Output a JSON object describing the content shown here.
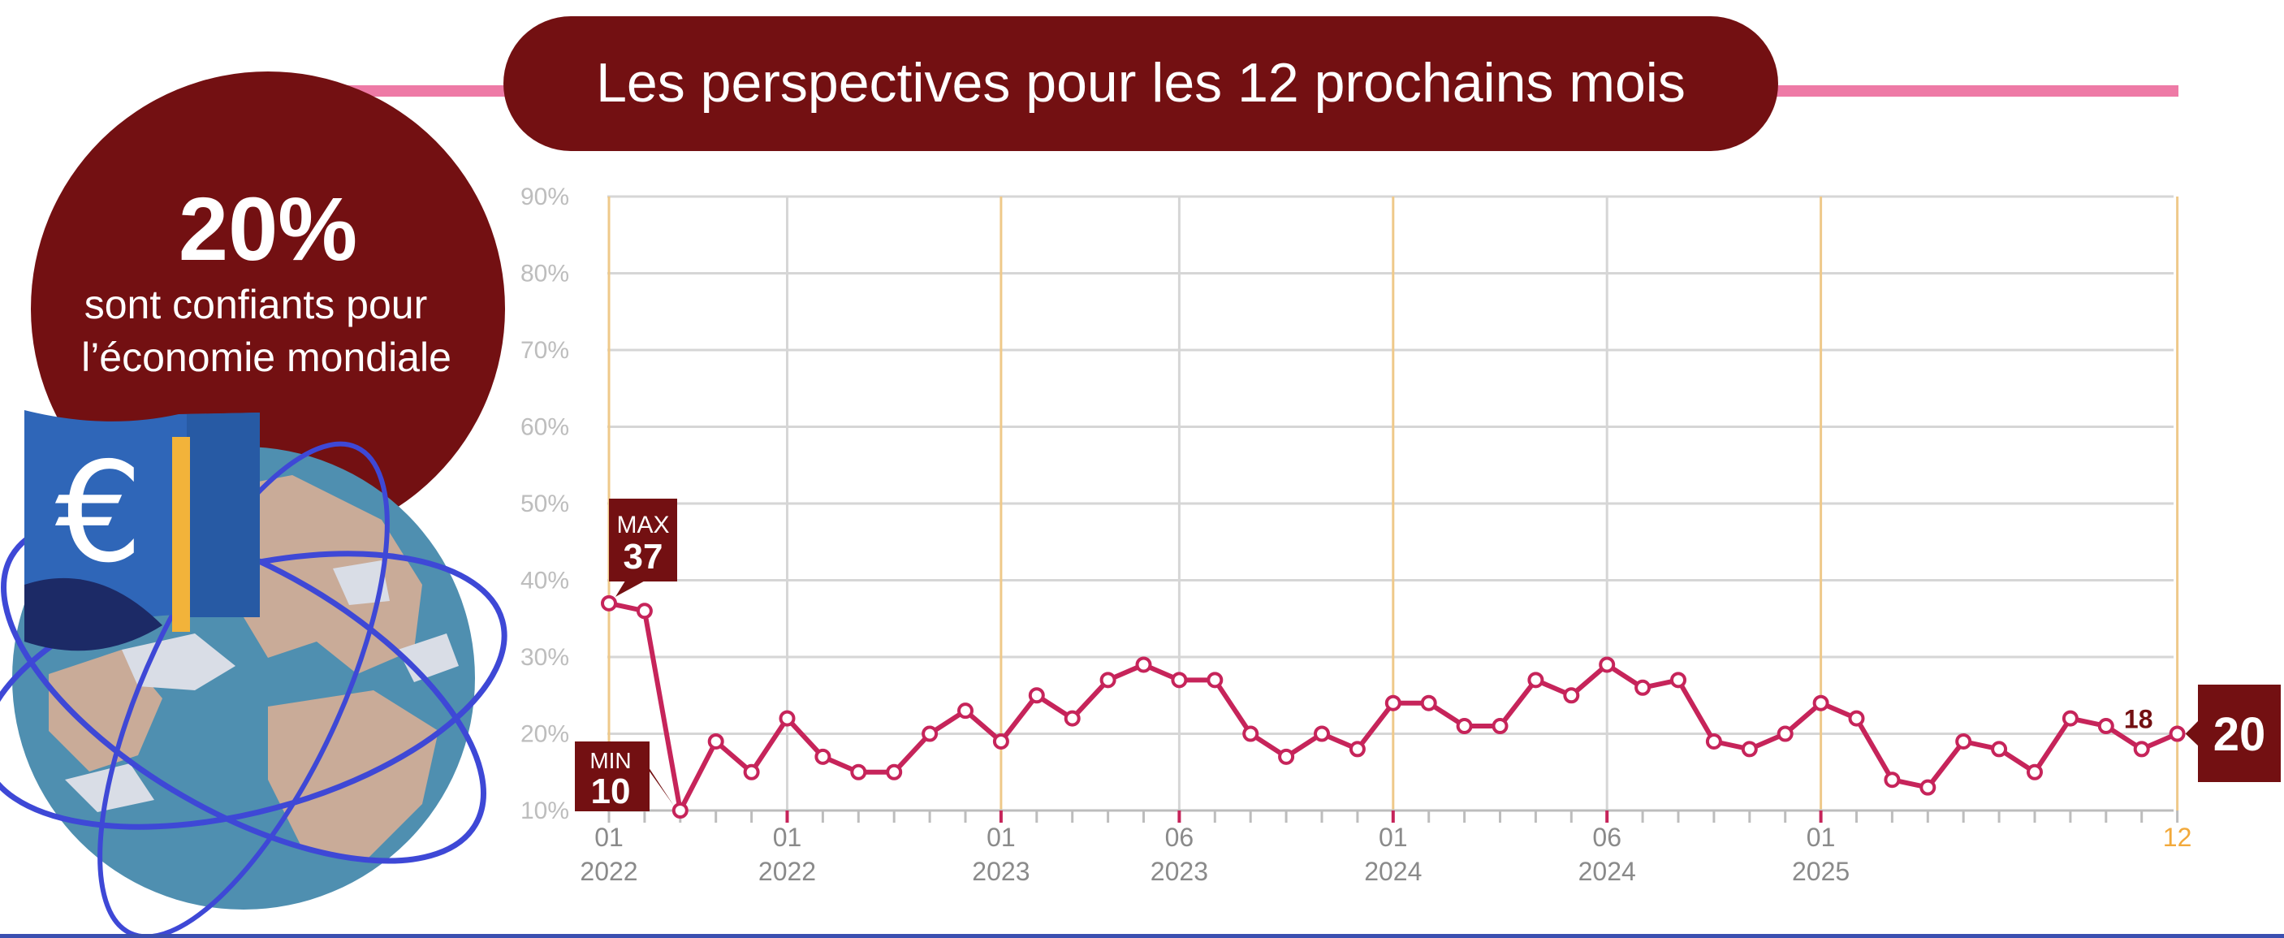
{
  "header": {
    "title": "Les perspectives pour les 12 prochains mois"
  },
  "badge": {
    "value": "20%",
    "line1": "sont confiants pour",
    "line2": "l’économie mondiale"
  },
  "illustration": {
    "icon": "euro-flag-globe-icon",
    "symbol": "€"
  },
  "colors": {
    "brand": "#731012",
    "line": "#c6245a",
    "accent_line": "#ee7aa6",
    "year_line": "#efc98a",
    "last_month": "#f2a93b",
    "grid": "#d6d6d6",
    "tick_text": "#bdbdbd",
    "axis_text": "#8a8a8a"
  },
  "chart_data": {
    "type": "line",
    "title": "Les perspectives pour les 12 prochains mois",
    "xlabel": "",
    "ylabel": "",
    "ylim": [
      10,
      90
    ],
    "y_ticks": [
      "10%",
      "20%",
      "30%",
      "40%",
      "50%",
      "60%",
      "70%",
      "80%",
      "90%"
    ],
    "x_first": "2022-01",
    "grid": true,
    "series": [
      {
        "name": "",
        "values": [
          37,
          36,
          10,
          19,
          15,
          22,
          17,
          15,
          15,
          20,
          23,
          19,
          25,
          22,
          27,
          29,
          27,
          27,
          20,
          17,
          20,
          18,
          24,
          24,
          21,
          21,
          27,
          25,
          29,
          26,
          27,
          19,
          18,
          20,
          24,
          22,
          14,
          13,
          19,
          18,
          15,
          22,
          21,
          18,
          20
        ]
      }
    ],
    "x_labels": [
      {
        "index": 0,
        "month": "01",
        "year": "2022",
        "highlight": false
      },
      {
        "index": 5,
        "month": "01",
        "year": "2022",
        "highlight": false
      },
      {
        "index": 11,
        "month": "01",
        "year": "2023",
        "highlight": false
      },
      {
        "index": 16,
        "month": "06",
        "year": "2023",
        "highlight": false
      },
      {
        "index": 22,
        "month": "01",
        "year": "2024",
        "highlight": false
      },
      {
        "index": 28,
        "month": "06",
        "year": "2024",
        "highlight": false
      },
      {
        "index": 34,
        "month": "01",
        "year": "2025",
        "highlight": false
      },
      {
        "index": 44,
        "month": "12",
        "year": "",
        "highlight": true
      }
    ],
    "year_markers": [
      0,
      11,
      22,
      34,
      44
    ],
    "red_ticks": [
      5,
      11,
      16,
      22,
      28,
      34
    ],
    "callouts": {
      "max": {
        "label": "MAX",
        "value": "37",
        "index": 0
      },
      "min": {
        "label": "MIN",
        "value": "10",
        "index": 2
      },
      "prev": {
        "value": "18",
        "index": 43
      },
      "last": {
        "value": "20",
        "index": 44
      }
    }
  }
}
